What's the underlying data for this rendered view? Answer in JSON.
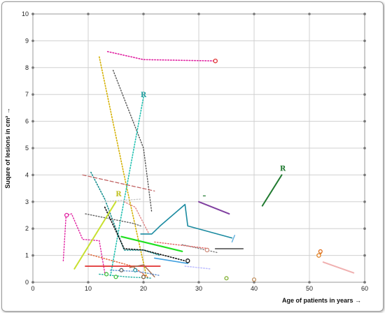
{
  "chart_data": {
    "type": "line",
    "title": "",
    "xlabel": "Age of patients in years →",
    "ylabel": "Suqare of lesions in cm² →",
    "xlim": [
      0,
      60
    ],
    "ylim": [
      0,
      10
    ],
    "xticks": [
      "0",
      "10",
      "20",
      "30",
      "40",
      "50",
      "60"
    ],
    "yticks": [
      "0",
      "1",
      "2",
      "3",
      "4",
      "5",
      "6",
      "7",
      "8",
      "9",
      "10"
    ],
    "grid": true,
    "legend": "none",
    "series": [
      {
        "color": "#e020a0",
        "dash": "dot",
        "width": 1.6,
        "points": [
          [
            13.5,
            8.6
          ],
          [
            20,
            8.3
          ],
          [
            33,
            8.25
          ]
        ],
        "marker": [
          33,
          8.25
        ],
        "markerColor": "#e03030"
      },
      {
        "color": "#d4b000",
        "dash": "dot",
        "width": 1.6,
        "points": [
          [
            12,
            8.4
          ],
          [
            17,
            3.5
          ],
          [
            20.5,
            0.25
          ]
        ]
      },
      {
        "color": "#555555",
        "dash": "dot",
        "width": 1.4,
        "points": [
          [
            14.5,
            7.9
          ],
          [
            20,
            5
          ],
          [
            21.5,
            2.6
          ]
        ]
      },
      {
        "color": "#20c0b0",
        "dash": "dot",
        "width": 1.6,
        "points": [
          [
            20,
            6.9
          ],
          [
            16,
            2.5
          ],
          [
            14,
            0.2
          ]
        ]
      },
      {
        "color": "#1a9090",
        "dash": "dot",
        "width": 1.6,
        "points": [
          [
            10.5,
            4.1
          ],
          [
            13,
            3.1
          ],
          [
            15,
            2
          ],
          [
            16.5,
            1.2
          ],
          [
            20,
            1.2
          ],
          [
            23,
            1
          ]
        ]
      },
      {
        "color": "#c06060",
        "dash": "dash",
        "width": 1.2,
        "points": [
          [
            9,
            4
          ],
          [
            22,
            3.4
          ]
        ]
      },
      {
        "color": "#e08080",
        "dash": "dot",
        "width": 1.4,
        "points": [
          [
            16.5,
            3
          ],
          [
            18.5,
            2.8
          ],
          [
            21,
            1.8
          ]
        ]
      },
      {
        "color": "#606060",
        "dash": "dot",
        "width": 1.4,
        "points": [
          [
            9.5,
            2.55
          ],
          [
            18,
            2.2
          ],
          [
            19.5,
            2.1
          ]
        ]
      },
      {
        "color": "#c8c8c8",
        "dash": "dot",
        "width": 1.4,
        "points": [
          [
            12.5,
            3
          ],
          [
            19.5,
            3.1
          ]
        ]
      },
      {
        "color": "#e020a0",
        "dash": "dot",
        "width": 1.4,
        "points": [
          [
            5.5,
            0.8
          ],
          [
            6,
            2.5
          ],
          [
            7,
            2.55
          ],
          [
            9,
            1.6
          ],
          [
            12,
            1.55
          ],
          [
            13,
            0.35
          ]
        ],
        "marker": [
          6.1,
          2.5
        ],
        "markerColor": "#e020a0"
      },
      {
        "color": "#111111",
        "dash": "dot",
        "width": 1.6,
        "points": [
          [
            13,
            2.8
          ],
          [
            16.5,
            1.25
          ],
          [
            20,
            1.2
          ],
          [
            27.5,
            0.8
          ]
        ],
        "marker": [
          28,
          0.8
        ],
        "markerColor": "#111111"
      },
      {
        "color": "#1a8aa0",
        "dash": "solid",
        "width": 1.6,
        "points": [
          [
            19.5,
            1.8
          ],
          [
            21.5,
            1.8
          ],
          [
            23,
            2.1
          ],
          [
            27.5,
            2.9
          ],
          [
            28,
            2.1
          ],
          [
            36,
            1.65
          ]
        ]
      },
      {
        "color": "#20e020",
        "dash": "solid",
        "width": 2.2,
        "points": [
          [
            16,
            1.7
          ],
          [
            27,
            1.15
          ]
        ]
      },
      {
        "color": "#c8e030",
        "dash": "solid",
        "width": 2,
        "points": [
          [
            7.5,
            0.5
          ],
          [
            15,
            3
          ]
        ]
      },
      {
        "color": "#e03030",
        "dash": "solid",
        "width": 1.8,
        "points": [
          [
            9.5,
            0.6
          ],
          [
            23,
            0.6
          ]
        ]
      },
      {
        "color": "#40a0e0",
        "dash": "solid",
        "width": 1.6,
        "points": [
          [
            22,
            0.9
          ],
          [
            28,
            0.7
          ]
        ]
      },
      {
        "color": "#c0c0ff",
        "dash": "dot",
        "width": 1.6,
        "points": [
          [
            27.5,
            0.6
          ],
          [
            32,
            0.5
          ]
        ]
      },
      {
        "color": "#8040a0",
        "dash": "solid",
        "width": 2,
        "points": [
          [
            30,
            3
          ],
          [
            35.5,
            2.55
          ]
        ]
      },
      {
        "color": "#808080",
        "dash": "dot",
        "width": 1.4,
        "points": [
          [
            27,
            1.4
          ],
          [
            33.5,
            1.1
          ]
        ]
      },
      {
        "color": "#606060",
        "dash": "solid",
        "width": 1.8,
        "points": [
          [
            33,
            1.25
          ],
          [
            38,
            1.25
          ]
        ]
      },
      {
        "color": "#60b0e0",
        "dash": "solid",
        "width": 1.4,
        "points": [
          [
            36,
            1.5
          ],
          [
            36.5,
            1.75
          ]
        ]
      },
      {
        "color": "#e06060",
        "dash": "dot",
        "width": 1.4,
        "points": [
          [
            22,
            1.5
          ],
          [
            32,
            1.25
          ]
        ],
        "marker": [
          31.5,
          1.2
        ],
        "markerColor": "#d09080"
      },
      {
        "color": "#207a30",
        "dash": "solid",
        "width": 2,
        "points": [
          [
            41.5,
            2.85
          ],
          [
            45,
            4
          ]
        ]
      },
      {
        "color": "#f0b0b0",
        "dash": "solid",
        "width": 2,
        "points": [
          [
            52.5,
            0.75
          ],
          [
            58,
            0.35
          ]
        ]
      },
      {
        "color": "#e08020",
        "dash": "solid",
        "width": 1.6,
        "points": [
          [
            51.7,
            1
          ],
          [
            52.2,
            1.1
          ]
        ],
        "marker": [
          51.7,
          1
        ],
        "markerColor": "#e08020"
      },
      {
        "color": "#e06030",
        "dash": "dot",
        "width": 1.4,
        "points": [
          [
            10,
            1.05
          ],
          [
            18,
            0.6
          ],
          [
            21,
            0.15
          ]
        ]
      },
      {
        "color": "#a07050",
        "dash": "solid",
        "width": 1.4,
        "points": [
          [
            17.5,
            0.55
          ],
          [
            20,
            0.65
          ],
          [
            22,
            0.2
          ]
        ]
      },
      {
        "color": "#6090d0",
        "dash": "dot",
        "width": 1.4,
        "points": [
          [
            14,
            0.45
          ],
          [
            19,
            0.4
          ],
          [
            23,
            0.25
          ]
        ]
      },
      {
        "color": "#20b0a0",
        "dash": "dot",
        "width": 1.4,
        "points": [
          [
            12,
            0.3
          ],
          [
            17,
            0.2
          ],
          [
            21.5,
            0.15
          ]
        ]
      }
    ],
    "markers": [
      {
        "x": 13.3,
        "y": 0.3,
        "color": "#40c040"
      },
      {
        "x": 15,
        "y": 0.2,
        "color": "#40c040"
      },
      {
        "x": 16,
        "y": 0.45,
        "color": "#606060"
      },
      {
        "x": 18.5,
        "y": 0.45,
        "color": "#2090a0"
      },
      {
        "x": 20,
        "y": 0.2,
        "color": "#806040"
      },
      {
        "x": 35,
        "y": 0.15,
        "color": "#80b030"
      },
      {
        "x": 40,
        "y": 0.1,
        "color": "#c09060"
      },
      {
        "x": 52,
        "y": 1.15,
        "color": "#e07020"
      }
    ],
    "annotations": [
      {
        "text": "R",
        "x": 20,
        "y": 6.9,
        "color": "#20a0a0"
      },
      {
        "text": "R",
        "x": 15.5,
        "y": 3.2,
        "color": "#c0c020"
      },
      {
        "text": "R",
        "x": 45.2,
        "y": 4.15,
        "color": "#207a30"
      },
      {
        "text": "–",
        "x": 31,
        "y": 3.15,
        "color": "#207a30"
      }
    ]
  }
}
